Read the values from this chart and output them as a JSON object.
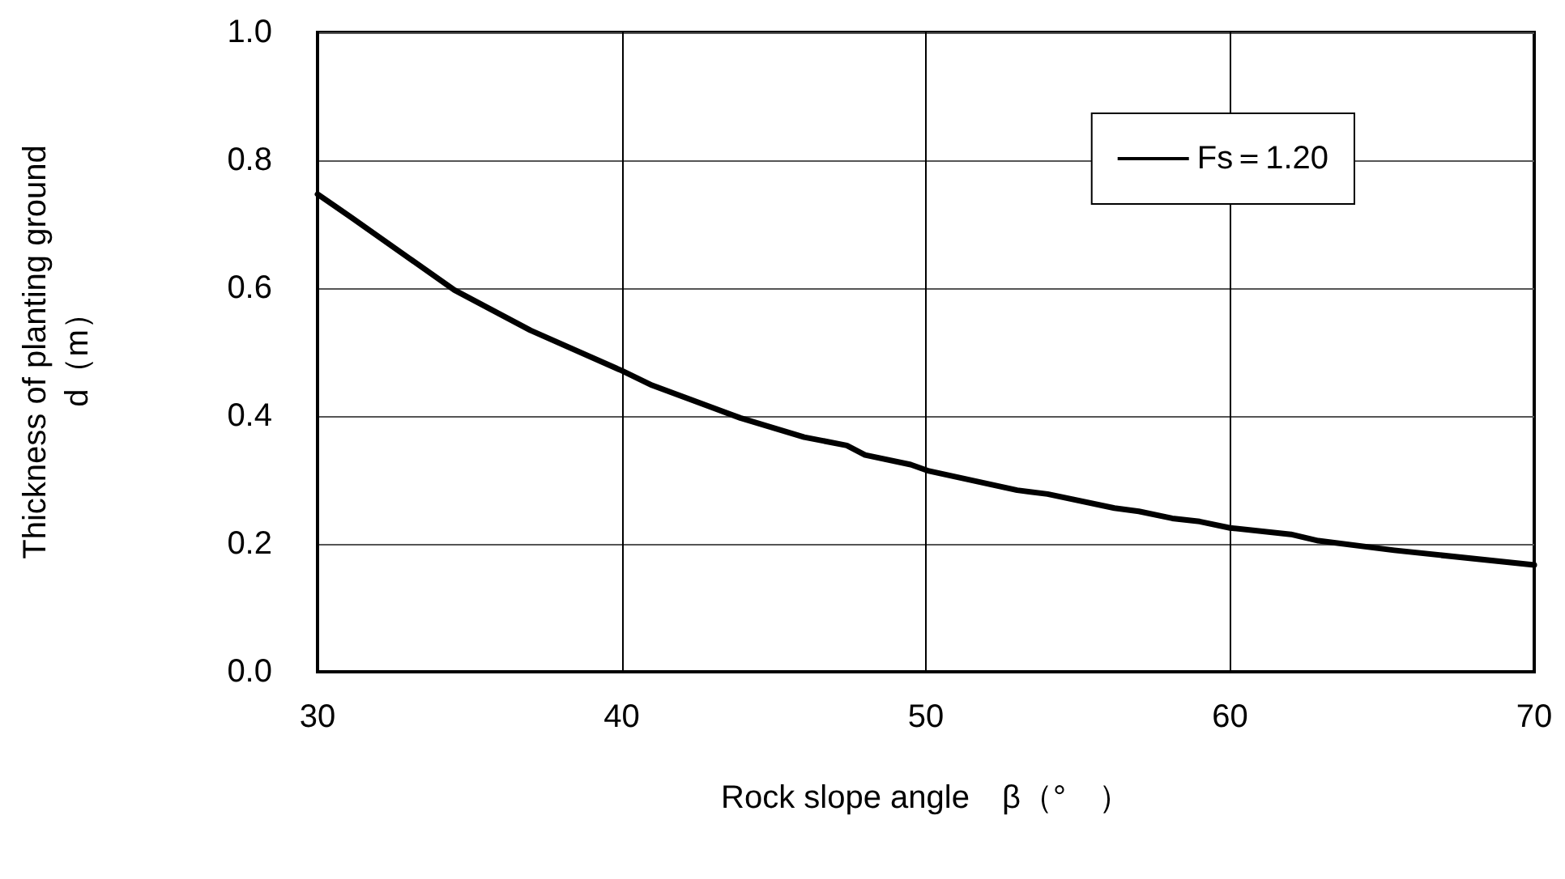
{
  "chart_data": {
    "type": "line",
    "xlabel": "Rock slope angle　β（°　）",
    "ylabel": "Thickness of planting ground\nd（m）",
    "xlim": [
      30,
      70
    ],
    "xticks": [
      30,
      40,
      50,
      60,
      70
    ],
    "ylim": [
      0,
      1
    ],
    "yticks": [
      {
        "value": 0,
        "label": "0.0"
      },
      {
        "value": 0.2,
        "label": "0.2"
      },
      {
        "value": 0.4,
        "label": "0.4"
      },
      {
        "value": 0.6,
        "label": "0.6"
      },
      {
        "value": 0.8,
        "label": "0.8"
      },
      {
        "value": 1,
        "label": "1.0"
      }
    ],
    "grid": true,
    "legend": "top right",
    "marker": "none",
    "line_style": "solid",
    "series": [
      {
        "name": "Fs＝1.20",
        "color": "#000000",
        "x": [
          30,
          31.1,
          34.5,
          37,
          40,
          41,
          43.9,
          46,
          47.4,
          48,
          49.5,
          50.1,
          53,
          54,
          56.2,
          57,
          58.1,
          59,
          60,
          62,
          62.9,
          65.4,
          70
        ],
        "values": [
          0.747,
          0.711,
          0.597,
          0.534,
          0.471,
          0.448,
          0.397,
          0.367,
          0.354,
          0.339,
          0.324,
          0.314,
          0.284,
          0.278,
          0.256,
          0.251,
          0.24,
          0.235,
          0.225,
          0.215,
          0.205,
          0.19,
          0.167
        ]
      }
    ]
  }
}
